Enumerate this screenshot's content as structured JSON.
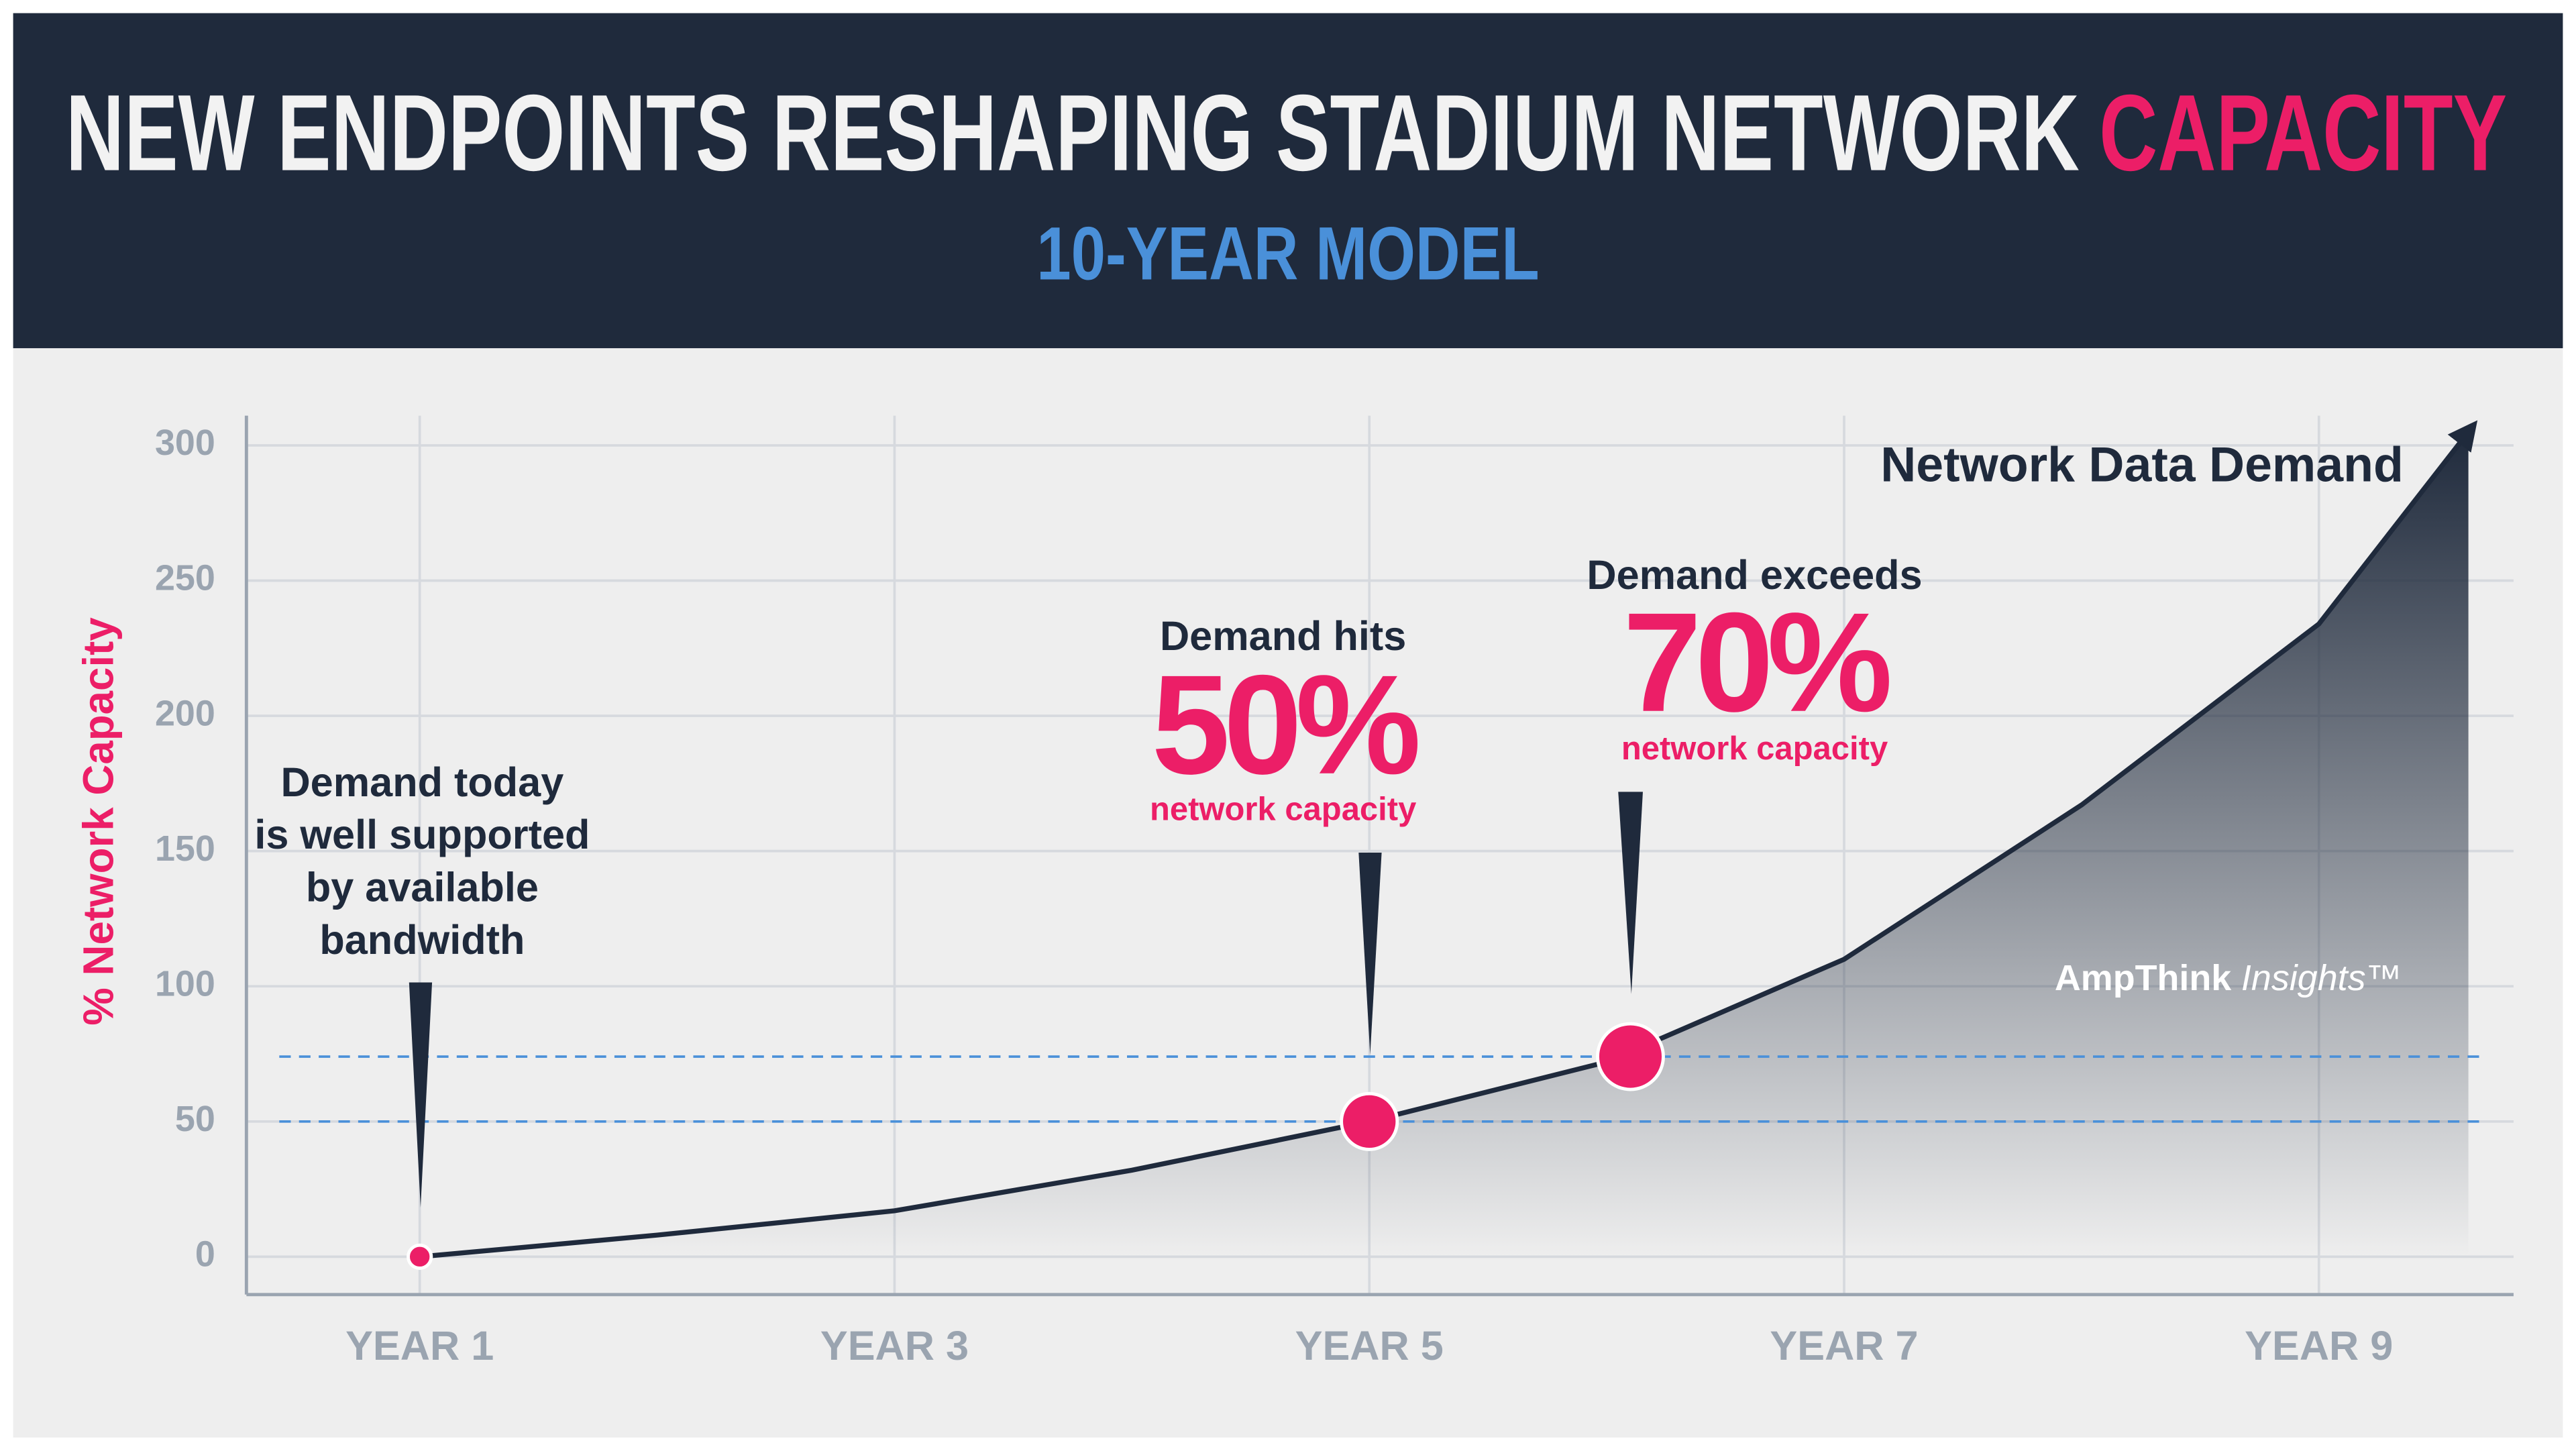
{
  "chart_data": {
    "type": "area",
    "title": "NEW ENDPOINTS RESHAPING STADIUM NETWORK",
    "title_highlight": "CAPACITY",
    "subtitle": "10-YEAR MODEL",
    "y_label": "% Network Capacity",
    "x": [
      1,
      2,
      3,
      4,
      5,
      6,
      7,
      8,
      9,
      9.63
    ],
    "series": [
      {
        "name": "Network Data Demand",
        "color": "#1f2a3c",
        "values": [
          0,
          8,
          17,
          32,
          50,
          72,
          110,
          167,
          234,
          305
        ]
      }
    ],
    "xlim": [
      0.27,
      9.82
    ],
    "ylim": [
      -14,
      311
    ],
    "xticks": [
      {
        "value": 1,
        "label": "YEAR 1"
      },
      {
        "value": 3,
        "label": "YEAR 3"
      },
      {
        "value": 5,
        "label": "YEAR 5"
      },
      {
        "value": 7,
        "label": "YEAR 7"
      },
      {
        "value": 9,
        "label": "YEAR 9"
      }
    ],
    "yticks": [
      0,
      50,
      100,
      150,
      200,
      250,
      300
    ],
    "grid": true,
    "reference_lines": [
      50,
      74
    ],
    "reference_color": "#4a90d9",
    "highlights": [
      {
        "x": 1,
        "y": 0
      },
      {
        "x": 5,
        "y": 50
      },
      {
        "x": 6.1,
        "y": 74
      }
    ],
    "highlight_color": "#ec1e67",
    "annotations": [
      {
        "lines": [
          "Demand today",
          "is well supported",
          "by available",
          "bandwidth"
        ]
      },
      {
        "lines": [
          "Demand hits"
        ],
        "big": "50%",
        "small": "network capacity"
      },
      {
        "lines": [
          "Demand exceeds"
        ],
        "big": "70%",
        "small": "network capacity"
      }
    ],
    "watermark": {
      "brand": "AmpThink",
      "product": "Insights™"
    }
  }
}
